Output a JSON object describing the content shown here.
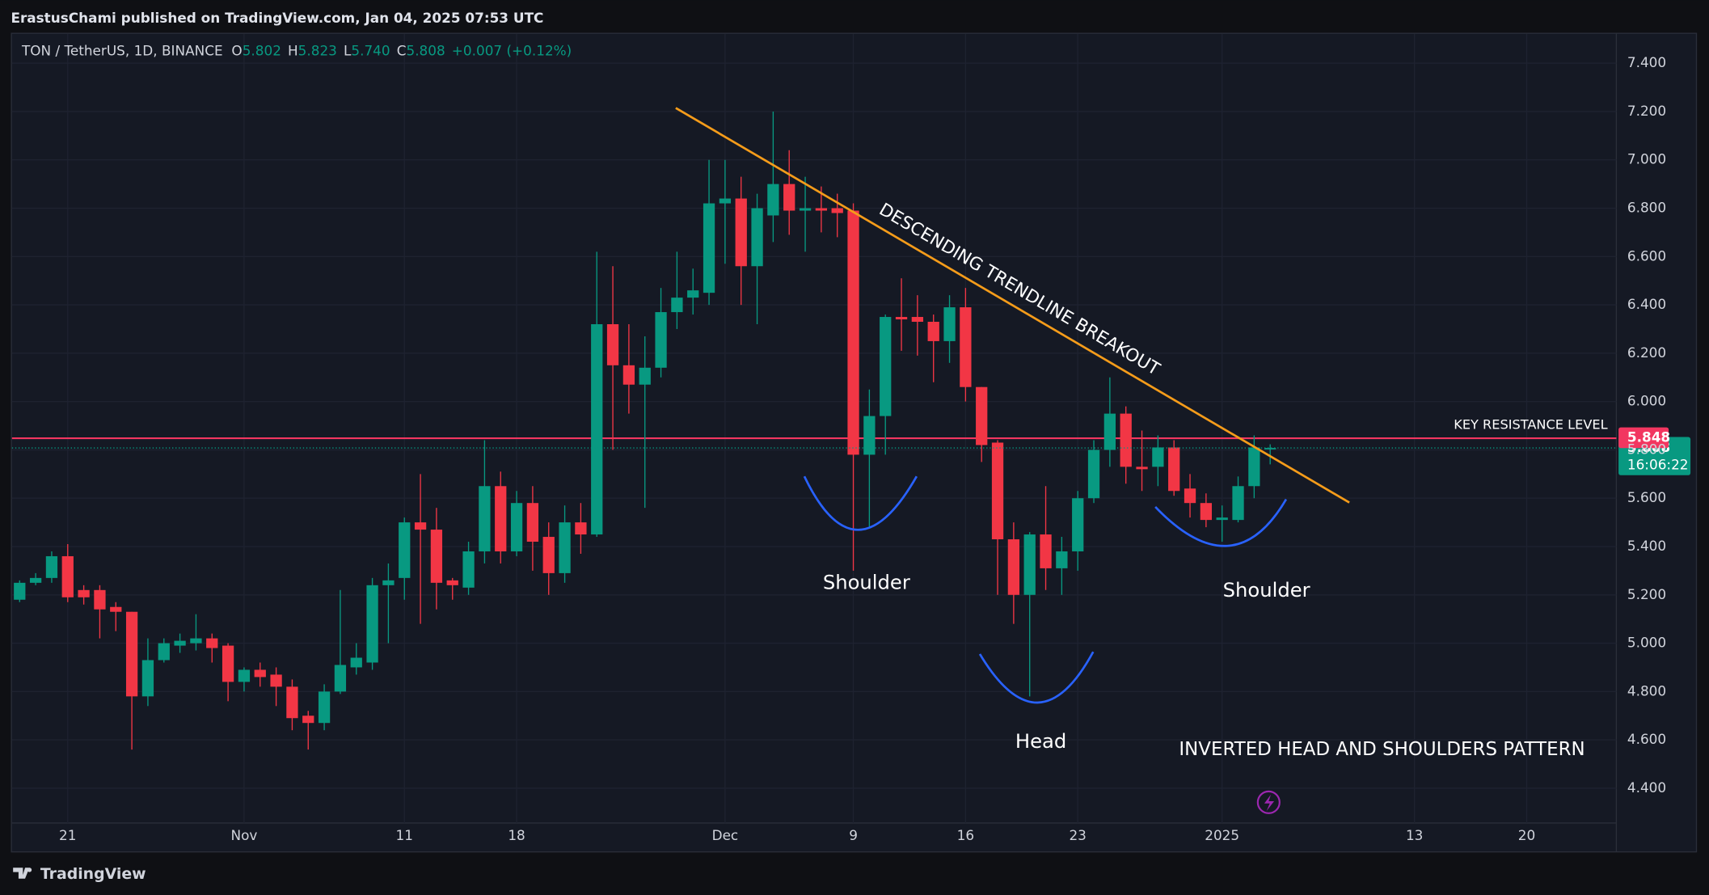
{
  "header": {
    "publisher": "ErastusChami published on TradingView.com, Jan 04, 2025 07:53 UTC"
  },
  "footer": {
    "brand": "TradingView"
  },
  "chart_data": {
    "type": "candlestick",
    "legend": {
      "symbol": "TON / TetherUS, 1D, BINANCE",
      "fields": [
        {
          "key": "O",
          "value": "5.802"
        },
        {
          "key": "H",
          "value": "5.823"
        },
        {
          "key": "L",
          "value": "5.740"
        },
        {
          "key": "C",
          "value": "5.808"
        }
      ],
      "change": "+0.007 (+0.12%)"
    },
    "categories": [
      null,
      null,
      null,
      "21",
      null,
      null,
      null,
      null,
      null,
      null,
      null,
      null,
      null,
      null,
      "Nov",
      null,
      null,
      null,
      null,
      null,
      null,
      null,
      null,
      null,
      "11",
      null,
      null,
      null,
      null,
      null,
      null,
      "18",
      null,
      null,
      null,
      null,
      null,
      null,
      null,
      null,
      null,
      null,
      null,
      null,
      "Dec",
      null,
      null,
      null,
      null,
      null,
      null,
      null,
      "9",
      null,
      null,
      null,
      null,
      null,
      null,
      "16",
      null,
      null,
      null,
      null,
      null,
      null,
      "23",
      null,
      null,
      null,
      null,
      null,
      null,
      null,
      null,
      "2025",
      null,
      null,
      null,
      null,
      null,
      null,
      null,
      null,
      null,
      null,
      null,
      "13",
      null,
      null,
      null,
      null,
      null,
      null,
      "20",
      null,
      null,
      null,
      null,
      null
    ],
    "open": [
      5.18,
      5.25,
      5.27,
      5.36,
      5.22,
      5.22,
      5.15,
      5.13,
      4.78,
      4.93,
      4.99,
      5.0,
      5.02,
      4.99,
      4.84,
      4.89,
      4.87,
      4.82,
      4.7,
      4.67,
      4.8,
      4.9,
      4.92,
      5.24,
      5.27,
      5.5,
      5.47,
      5.26,
      5.23,
      5.38,
      5.65,
      5.38,
      5.58,
      5.44,
      5.29,
      5.5,
      5.45,
      6.32,
      6.15,
      6.07,
      6.14,
      6.37,
      6.43,
      6.45,
      6.82,
      6.84,
      6.56,
      6.77,
      6.9,
      6.79,
      6.8,
      6.8,
      6.79,
      5.78,
      5.94,
      6.35,
      6.35,
      6.33,
      6.25,
      6.39,
      6.06,
      5.83,
      5.43,
      5.2,
      5.45,
      5.31,
      5.38,
      5.6,
      5.8,
      5.95,
      5.73,
      5.73,
      5.81,
      5.64,
      5.58,
      5.51,
      5.51,
      5.65,
      5.802,
      null,
      null,
      null,
      null,
      null,
      null,
      null,
      null,
      null,
      null,
      null,
      null,
      null,
      null,
      null,
      null,
      null,
      null,
      null,
      null,
      null
    ],
    "high": [
      5.26,
      5.29,
      5.38,
      5.41,
      5.24,
      5.24,
      5.17,
      5.13,
      5.02,
      5.02,
      5.04,
      5.12,
      5.04,
      5.0,
      4.9,
      4.92,
      4.9,
      4.85,
      4.72,
      4.83,
      5.22,
      5.0,
      5.27,
      5.33,
      5.52,
      5.7,
      5.56,
      5.27,
      5.42,
      5.84,
      5.71,
      5.63,
      5.65,
      5.5,
      5.57,
      5.58,
      6.62,
      6.56,
      6.32,
      6.27,
      6.47,
      6.62,
      6.55,
      7.0,
      7.0,
      6.93,
      6.86,
      7.2,
      7.04,
      6.93,
      6.89,
      6.86,
      6.82,
      6.05,
      6.36,
      6.51,
      6.44,
      6.36,
      6.44,
      6.47,
      6.06,
      5.84,
      5.5,
      5.46,
      5.65,
      5.44,
      5.63,
      5.84,
      6.1,
      5.98,
      5.88,
      5.86,
      5.84,
      5.7,
      5.62,
      5.57,
      5.69,
      5.86,
      5.823,
      null,
      null,
      null,
      null,
      null,
      null,
      null,
      null,
      null,
      null,
      null,
      null,
      null,
      null,
      null,
      null,
      null,
      null,
      null,
      null,
      null
    ],
    "low": [
      5.17,
      5.24,
      5.25,
      5.17,
      5.16,
      5.02,
      5.05,
      4.56,
      4.74,
      4.92,
      4.96,
      4.97,
      4.92,
      4.76,
      4.8,
      4.82,
      4.74,
      4.64,
      4.56,
      4.64,
      4.79,
      4.87,
      4.89,
      5.0,
      5.18,
      5.08,
      5.14,
      5.18,
      5.2,
      5.33,
      5.33,
      5.36,
      5.3,
      5.2,
      5.25,
      5.37,
      5.44,
      5.8,
      5.95,
      5.56,
      6.1,
      6.3,
      6.36,
      6.4,
      6.57,
      6.4,
      6.32,
      6.66,
      6.69,
      6.62,
      6.7,
      6.68,
      5.3,
      5.48,
      5.78,
      6.21,
      6.19,
      6.08,
      6.16,
      6.0,
      5.75,
      5.2,
      5.08,
      4.78,
      5.22,
      5.2,
      5.3,
      5.58,
      5.73,
      5.66,
      5.63,
      5.65,
      5.61,
      5.52,
      5.48,
      5.42,
      5.5,
      5.6,
      5.74,
      null,
      null,
      null,
      null,
      null,
      null,
      null,
      null,
      null,
      null,
      null,
      null,
      null,
      null,
      null,
      null,
      null,
      null,
      null,
      null,
      null
    ],
    "close": [
      5.25,
      5.27,
      5.36,
      5.19,
      5.19,
      5.14,
      5.13,
      4.78,
      4.93,
      5.0,
      5.01,
      5.02,
      4.98,
      4.84,
      4.89,
      4.86,
      4.82,
      4.69,
      4.67,
      4.8,
      4.91,
      4.94,
      5.24,
      5.26,
      5.5,
      5.47,
      5.25,
      5.24,
      5.38,
      5.65,
      5.38,
      5.58,
      5.42,
      5.29,
      5.5,
      5.45,
      6.32,
      6.15,
      6.07,
      6.14,
      6.37,
      6.43,
      6.46,
      6.82,
      6.84,
      6.56,
      6.8,
      6.9,
      6.79,
      6.8,
      6.79,
      6.78,
      5.78,
      5.94,
      6.35,
      6.34,
      6.33,
      6.25,
      6.39,
      6.06,
      5.82,
      5.43,
      5.2,
      5.45,
      5.31,
      5.38,
      5.6,
      5.8,
      5.95,
      5.73,
      5.72,
      5.81,
      5.63,
      5.58,
      5.51,
      5.52,
      5.65,
      5.81,
      5.808,
      null,
      null,
      null,
      null,
      null,
      null,
      null,
      null,
      null,
      null,
      null,
      null,
      null,
      null,
      null,
      null,
      null,
      null,
      null,
      null,
      null
    ],
    "up_color": "#089981",
    "down_color": "#f23645",
    "ylim": [
      4.256,
      7.526
    ],
    "yticks": [
      {
        "value": 4.4,
        "label": "4.400"
      },
      {
        "value": 4.6,
        "label": "4.600"
      },
      {
        "value": 4.8,
        "label": "4.800"
      },
      {
        "value": 5.0,
        "label": "5.000"
      },
      {
        "value": 5.2,
        "label": "5.200"
      },
      {
        "value": 5.4,
        "label": "5.400"
      },
      {
        "value": 5.6,
        "label": "5.600"
      },
      {
        "value": 5.8,
        "label": "5.800"
      },
      {
        "value": 6.0,
        "label": "6.000"
      },
      {
        "value": 6.2,
        "label": "6.200"
      },
      {
        "value": 6.4,
        "label": "6.400"
      },
      {
        "value": 6.6,
        "label": "6.600"
      },
      {
        "value": 6.8,
        "label": "6.800"
      },
      {
        "value": 7.0,
        "label": "7.000"
      },
      {
        "value": 7.2,
        "label": "7.200"
      },
      {
        "value": 7.4,
        "label": "7.400"
      }
    ],
    "grid": true,
    "resistance": {
      "label": "KEY RESISTANCE LEVEL",
      "value": 5.848,
      "color": "#f23660"
    },
    "countdown": "16:06:22",
    "annotations": [
      "DESCENDING TRENDLINE BREAKOUT",
      "Shoulder",
      "Head",
      "Shoulder",
      "INVERTED HEAD AND SHOULDERS PATTERN"
    ]
  }
}
